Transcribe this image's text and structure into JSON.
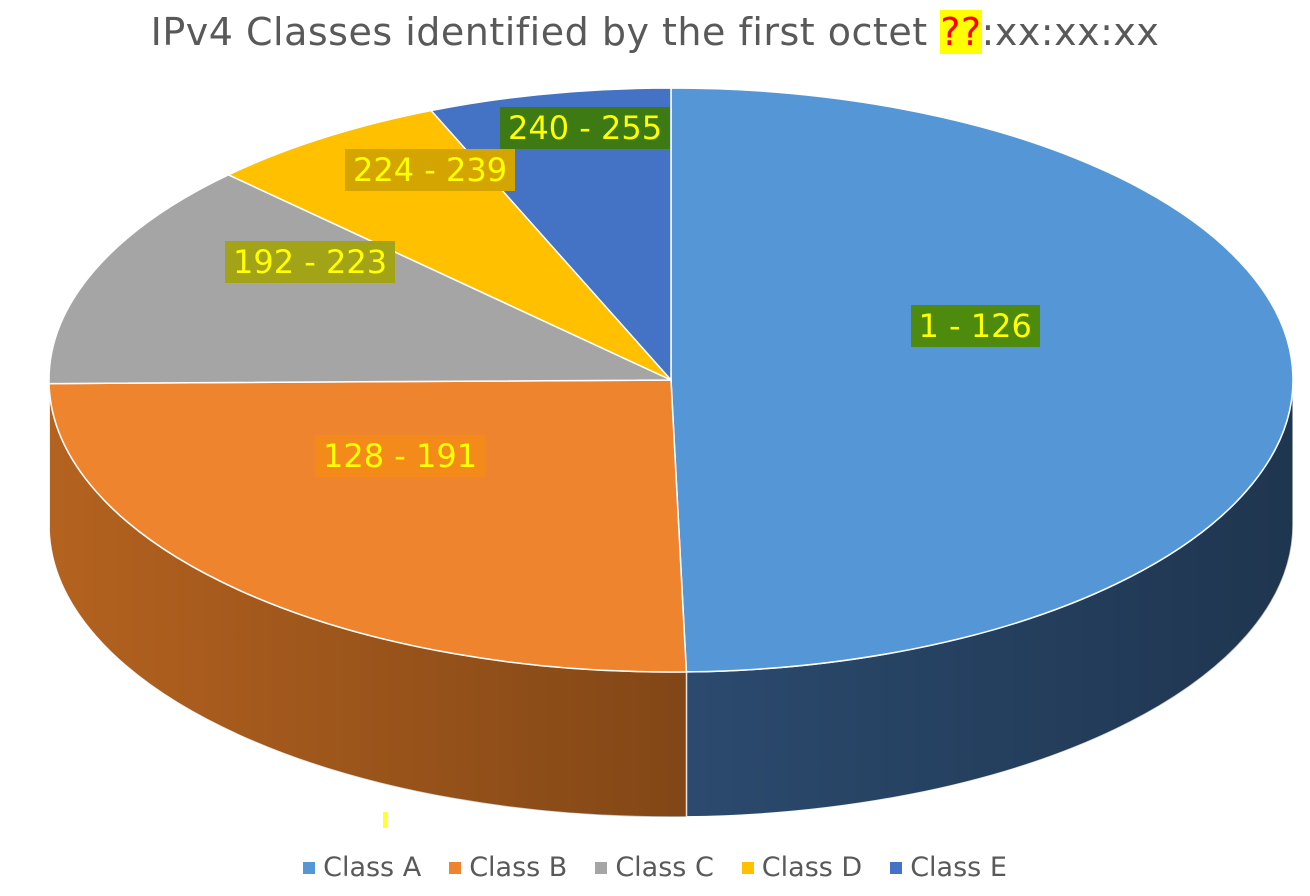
{
  "title": {
    "prefix": "IPv4 Classes identified by the first octet ",
    "highlight": "??",
    "suffix": ":xx:xx:xx"
  },
  "chart_data": {
    "type": "pie",
    "title": "IPv4 Classes identified by the first octet ??:xx:xx:xx",
    "legend_position": "bottom",
    "slices": [
      {
        "name": "Class A",
        "label": "1 - 126",
        "value": 126,
        "color": "#5596d6",
        "side_color": "#2b4a6e",
        "label_bg": "#4e8a0e"
      },
      {
        "name": "Class B",
        "label": "128 - 191",
        "value": 64,
        "color": "#ef842e",
        "side_color": "#b4621f",
        "label_bg": "#f48a1a"
      },
      {
        "name": "Class C",
        "label": "192 - 223",
        "value": 32,
        "color": "#a5a5a5",
        "side_color": "#7f7f7f",
        "label_bg": "#a3a317"
      },
      {
        "name": "Class D",
        "label": "224 - 239",
        "value": 16,
        "color": "#ffc000",
        "side_color": "#bf9000",
        "label_bg": "#d4a500"
      },
      {
        "name": "Class E",
        "label": "240 - 255",
        "value": 16,
        "color": "#4472c4",
        "side_color": "#2f5597",
        "label_bg": "#3d7a14"
      }
    ]
  }
}
